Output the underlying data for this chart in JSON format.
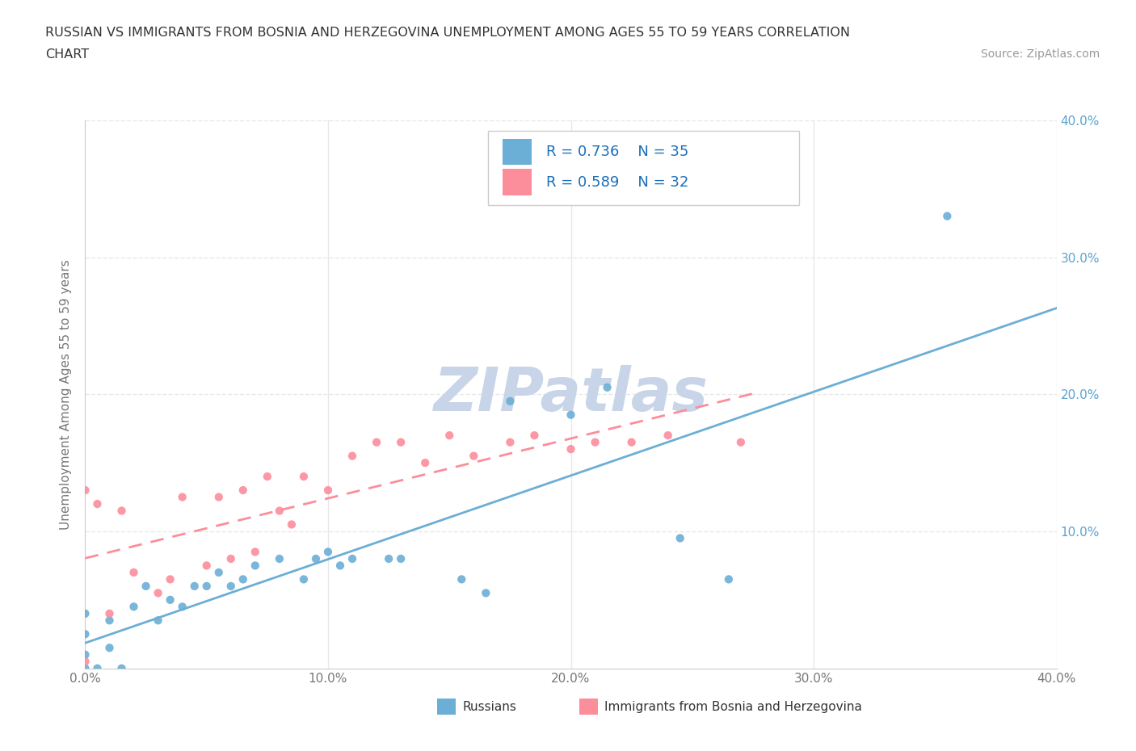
{
  "title_line1": "RUSSIAN VS IMMIGRANTS FROM BOSNIA AND HERZEGOVINA UNEMPLOYMENT AMONG AGES 55 TO 59 YEARS CORRELATION",
  "title_line2": "CHART",
  "source_text": "Source: ZipAtlas.com",
  "ylabel": "Unemployment Among Ages 55 to 59 years",
  "xlim": [
    0.0,
    0.4
  ],
  "ylim": [
    0.0,
    0.4
  ],
  "xtick_vals": [
    0.0,
    0.1,
    0.2,
    0.3,
    0.4
  ],
  "ytick_vals": [
    0.1,
    0.2,
    0.3,
    0.4
  ],
  "russians_color": "#6baed6",
  "bosnia_color": "#fc8d9b",
  "russians_R": 0.736,
  "russians_N": 35,
  "bosnia_R": 0.589,
  "bosnia_N": 32,
  "legend_color": "#1a6fba",
  "watermark": "ZIPatlas",
  "watermark_color": "#c8d4e8",
  "russians_x": [
    0.0,
    0.0,
    0.0,
    0.0,
    0.005,
    0.01,
    0.01,
    0.015,
    0.02,
    0.025,
    0.03,
    0.035,
    0.04,
    0.045,
    0.05,
    0.055,
    0.06,
    0.065,
    0.07,
    0.08,
    0.09,
    0.095,
    0.1,
    0.105,
    0.11,
    0.125,
    0.13,
    0.155,
    0.165,
    0.175,
    0.2,
    0.215,
    0.245,
    0.265,
    0.355
  ],
  "russians_y": [
    0.0,
    0.01,
    0.025,
    0.04,
    0.0,
    0.015,
    0.035,
    0.0,
    0.045,
    0.06,
    0.035,
    0.05,
    0.045,
    0.06,
    0.06,
    0.07,
    0.06,
    0.065,
    0.075,
    0.08,
    0.065,
    0.08,
    0.085,
    0.075,
    0.08,
    0.08,
    0.08,
    0.065,
    0.055,
    0.195,
    0.185,
    0.205,
    0.095,
    0.065,
    0.33
  ],
  "bosnia_x": [
    0.0,
    0.0,
    0.005,
    0.01,
    0.015,
    0.02,
    0.03,
    0.035,
    0.04,
    0.05,
    0.055,
    0.06,
    0.065,
    0.07,
    0.075,
    0.08,
    0.085,
    0.09,
    0.1,
    0.11,
    0.12,
    0.13,
    0.14,
    0.15,
    0.16,
    0.175,
    0.185,
    0.2,
    0.21,
    0.225,
    0.24,
    0.27
  ],
  "bosnia_y": [
    0.005,
    0.13,
    0.12,
    0.04,
    0.115,
    0.07,
    0.055,
    0.065,
    0.125,
    0.075,
    0.125,
    0.08,
    0.13,
    0.085,
    0.14,
    0.115,
    0.105,
    0.14,
    0.13,
    0.155,
    0.165,
    0.165,
    0.15,
    0.17,
    0.155,
    0.165,
    0.17,
    0.16,
    0.165,
    0.165,
    0.17,
    0.165
  ],
  "background_color": "#ffffff",
  "grid_color": "#e8e8e8",
  "axis_color": "#cccccc",
  "tick_color": "#777777",
  "right_tick_color": "#5ba3d0"
}
